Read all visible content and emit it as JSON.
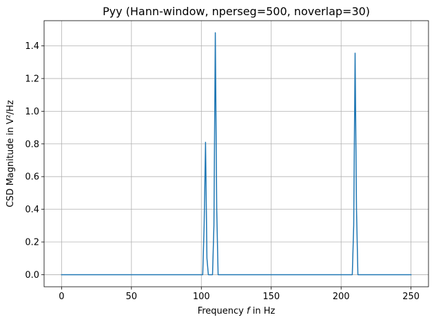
{
  "chart_data": {
    "type": "line",
    "title": "Pyy (Hann-window, nperseg=500, noverlap=30)",
    "xlabel_prefix": "Frequency ",
    "xlabel_var": "f",
    "xlabel_suffix": " in Hz",
    "ylabel": "CSD Magnitude in V²/Hz",
    "xlim": [
      -12.5,
      262.5
    ],
    "ylim": [
      -0.074,
      1.554
    ],
    "xticks": [
      0,
      50,
      100,
      150,
      200,
      250
    ],
    "xtick_labels": [
      "0",
      "50",
      "100",
      "150",
      "200",
      "250"
    ],
    "yticks": [
      0.0,
      0.2,
      0.4,
      0.6,
      0.8,
      1.0,
      1.2,
      1.4
    ],
    "ytick_labels": [
      "0.0",
      "0.2",
      "0.4",
      "0.6",
      "0.8",
      "1.0",
      "1.2",
      "1.4"
    ],
    "grid": true,
    "series": [
      {
        "color": "#1f77b4",
        "x": [
          0,
          101,
          102,
          103,
          104,
          105,
          106,
          107,
          108,
          109,
          110,
          111,
          112,
          113,
          207,
          208,
          209,
          210,
          211,
          212,
          213,
          250
        ],
        "y": [
          0,
          0,
          0.3,
          0.81,
          0.1,
          0,
          0,
          0,
          0,
          0.3,
          1.48,
          0.4,
          0,
          0,
          0,
          0,
          0.3,
          1.355,
          0.4,
          0,
          0,
          0
        ]
      }
    ]
  }
}
